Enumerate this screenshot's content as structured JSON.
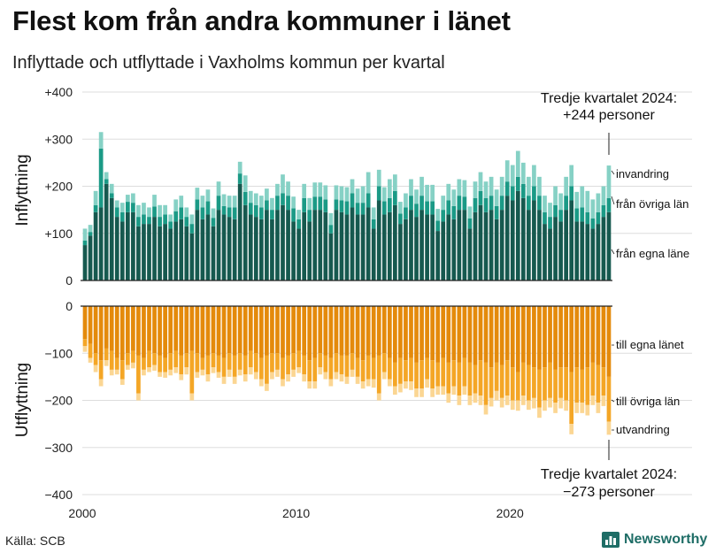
{
  "title": "Flest kom från andra kommuner i länet",
  "subtitle": "Inflyttade och utflyttade i Vaxholms kommun per kvartal",
  "source": "Källa: SCB",
  "brand": "Newsworthy",
  "colors": {
    "in_egna": "#16594f",
    "in_ovriga": "#1b9a86",
    "in_invandring": "#86d1c5",
    "ut_egna": "#e48a0b",
    "ut_ovriga": "#f4a626",
    "ut_utvandring": "#fbd693",
    "grid": "#dddddd",
    "brand": "#1e6d66"
  },
  "chart_data": {
    "type": "bar",
    "stacked": true,
    "x_start": "2000 Q1",
    "periods": 99,
    "x_ticks": [
      {
        "value": 2000,
        "label": "2000"
      },
      {
        "value": 2010,
        "label": "2010"
      },
      {
        "value": 2020,
        "label": "2020"
      }
    ],
    "top_panel": {
      "ylabel": "Inflyttning",
      "ylim": [
        0,
        400
      ],
      "y_ticks": [
        {
          "v": 400,
          "label": "+400"
        },
        {
          "v": 300,
          "label": "+300"
        },
        {
          "v": 200,
          "label": "+200"
        },
        {
          "v": 100,
          "label": "+100"
        },
        {
          "v": 0,
          "label": "0"
        }
      ],
      "series": [
        {
          "name": "från egna läne",
          "values": [
            75,
            95,
            145,
            155,
            205,
            175,
            135,
            125,
            145,
            145,
            115,
            120,
            120,
            135,
            115,
            120,
            110,
            125,
            130,
            115,
            100,
            150,
            130,
            140,
            115,
            150,
            140,
            135,
            130,
            205,
            160,
            140,
            135,
            130,
            150,
            130,
            150,
            160,
            150,
            125,
            110,
            145,
            125,
            150,
            150,
            145,
            100,
            150,
            145,
            140,
            155,
            140,
            140,
            155,
            110,
            170,
            140,
            145,
            160,
            120,
            130,
            150,
            135,
            150,
            140,
            140,
            105,
            125,
            140,
            130,
            150,
            150,
            110,
            145,
            160,
            145,
            150,
            130,
            150,
            180,
            170,
            190,
            175,
            150,
            170,
            150,
            120,
            110,
            135,
            125,
            150,
            170,
            125,
            125,
            120,
            110,
            120,
            135,
            145
          ]
        },
        {
          "name": "från övriga län",
          "values": [
            10,
            8,
            15,
            125,
            10,
            10,
            20,
            20,
            22,
            20,
            20,
            20,
            15,
            22,
            20,
            20,
            15,
            22,
            25,
            20,
            20,
            22,
            25,
            28,
            18,
            30,
            18,
            20,
            25,
            22,
            28,
            25,
            25,
            25,
            20,
            20,
            30,
            25,
            30,
            28,
            20,
            30,
            25,
            28,
            28,
            27,
            18,
            22,
            25,
            28,
            30,
            25,
            25,
            30,
            20,
            30,
            28,
            30,
            30,
            22,
            25,
            30,
            28,
            30,
            28,
            28,
            22,
            25,
            30,
            28,
            30,
            28,
            22,
            30,
            30,
            30,
            30,
            28,
            30,
            30,
            30,
            30,
            30,
            30,
            30,
            30,
            25,
            25,
            25,
            25,
            30,
            30,
            28,
            30,
            25,
            22,
            25,
            25,
            30
          ]
        },
        {
          "name": "invandring",
          "values": [
            25,
            15,
            30,
            35,
            15,
            20,
            15,
            20,
            15,
            20,
            25,
            25,
            20,
            25,
            25,
            20,
            15,
            25,
            25,
            20,
            20,
            25,
            25,
            25,
            20,
            30,
            25,
            25,
            25,
            25,
            35,
            25,
            25,
            25,
            25,
            25,
            25,
            40,
            30,
            25,
            20,
            30,
            25,
            30,
            30,
            30,
            25,
            30,
            30,
            30,
            30,
            30,
            35,
            45,
            25,
            35,
            30,
            40,
            35,
            25,
            30,
            35,
            30,
            40,
            35,
            35,
            25,
            30,
            35,
            35,
            35,
            35,
            25,
            35,
            40,
            35,
            40,
            35,
            40,
            45,
            45,
            55,
            45,
            40,
            45,
            40,
            35,
            30,
            40,
            35,
            40,
            45,
            35,
            45,
            45,
            40,
            40,
            40,
            69
          ]
        }
      ],
      "annotation_lines": [
        "Tredje kvartalet 2024:",
        "+244 personer"
      ]
    },
    "bottom_panel": {
      "ylabel": "Utflyttning",
      "ylim": [
        -400,
        0
      ],
      "y_ticks": [
        {
          "v": 0,
          "label": "0"
        },
        {
          "v": -100,
          "label": "−100"
        },
        {
          "v": -200,
          "label": "−200"
        },
        {
          "v": -300,
          "label": "−300"
        },
        {
          "v": -400,
          "label": "−400"
        }
      ],
      "series": [
        {
          "name": "till egna länet",
          "values": [
            -70,
            -80,
            -100,
            -115,
            -90,
            -95,
            -110,
            -115,
            -100,
            -95,
            -105,
            -110,
            -95,
            -100,
            -105,
            -110,
            -100,
            -95,
            -105,
            -100,
            -95,
            -100,
            -110,
            -105,
            -100,
            -105,
            -110,
            -100,
            -105,
            -100,
            -105,
            -95,
            -100,
            -110,
            -105,
            -100,
            -100,
            -110,
            -105,
            -100,
            -95,
            -105,
            -115,
            -110,
            -100,
            -105,
            -110,
            -100,
            -105,
            -105,
            -100,
            -110,
            -115,
            -105,
            -110,
            -105,
            -100,
            -110,
            -120,
            -110,
            -115,
            -110,
            -120,
            -115,
            -110,
            -115,
            -120,
            -110,
            -120,
            -115,
            -120,
            -110,
            -120,
            -125,
            -115,
            -120,
            -130,
            -120,
            -125,
            -115,
            -130,
            -140,
            -120,
            -125,
            -130,
            -135,
            -130,
            -120,
            -135,
            -130,
            -130,
            -140,
            -130,
            -135,
            -130,
            -120,
            -125,
            -130,
            -150
          ]
        },
        {
          "name": "till övriga län",
          "values": [
            -15,
            -30,
            -25,
            -40,
            -25,
            -40,
            -25,
            -40,
            -25,
            -25,
            -80,
            -25,
            -35,
            -25,
            -35,
            -30,
            -35,
            -35,
            -40,
            -30,
            -90,
            -40,
            -25,
            -40,
            -30,
            -35,
            -40,
            -35,
            -45,
            -35,
            -40,
            -35,
            -40,
            -45,
            -60,
            -40,
            -35,
            -45,
            -40,
            -35,
            -35,
            -40,
            -45,
            -50,
            -30,
            -35,
            -45,
            -40,
            -40,
            -45,
            -35,
            -40,
            -45,
            -50,
            -45,
            -80,
            -40,
            -45,
            -50,
            -55,
            -45,
            -50,
            -55,
            -60,
            -45,
            -60,
            -50,
            -60,
            -65,
            -55,
            -70,
            -60,
            -70,
            -60,
            -75,
            -90,
            -65,
            -60,
            -70,
            -75,
            -70,
            -60,
            -70,
            -75,
            -65,
            -80,
            -70,
            -75,
            -70,
            -65,
            -70,
            -110,
            -75,
            -70,
            -80,
            -70,
            -80,
            -60,
            -95
          ]
        },
        {
          "name": "utvandring",
          "values": [
            -12,
            -10,
            -15,
            -15,
            -12,
            -12,
            -10,
            -12,
            -10,
            -12,
            -15,
            -12,
            -10,
            -12,
            -10,
            -12,
            -12,
            -12,
            -12,
            -15,
            -15,
            -12,
            -12,
            -15,
            -12,
            -12,
            -15,
            -15,
            -15,
            -12,
            -15,
            -15,
            -15,
            -15,
            -15,
            -15,
            -15,
            -15,
            -15,
            -15,
            -12,
            -15,
            -15,
            -15,
            -15,
            -15,
            -15,
            -15,
            -15,
            -15,
            -15,
            -15,
            -15,
            -15,
            -18,
            -15,
            -15,
            -15,
            -18,
            -18,
            -15,
            -18,
            -18,
            -18,
            -18,
            -18,
            -18,
            -18,
            -20,
            -18,
            -20,
            -18,
            -20,
            -20,
            -20,
            -20,
            -18,
            -20,
            -20,
            -20,
            -20,
            -22,
            -20,
            -20,
            -22,
            -22,
            -22,
            -20,
            -22,
            -22,
            -22,
            -22,
            -22,
            -22,
            -22,
            -20,
            -22,
            -22,
            -28
          ]
        }
      ],
      "annotation_lines": [
        "Tredje kvartalet 2024:",
        "−273 personer"
      ]
    }
  }
}
